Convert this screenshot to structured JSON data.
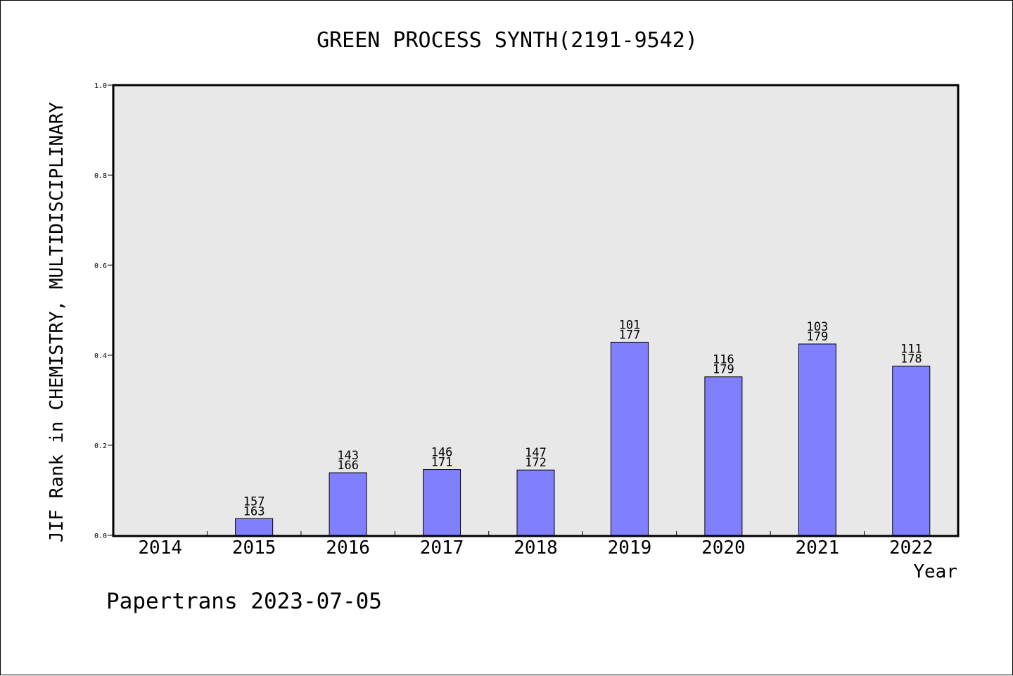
{
  "chart_data": {
    "type": "bar",
    "title": "GREEN PROCESS SYNTH(2191-9542)",
    "xlabel": "Year",
    "ylabel": "JIF Rank in CHEMISTRY, MULTIDISCIPLINARY",
    "ylim": [
      0,
      1
    ],
    "yticks": [
      "0.0",
      "0.2",
      "0.4",
      "0.6",
      "0.8",
      "1.0"
    ],
    "categories": [
      "2014",
      "2015",
      "2016",
      "2017",
      "2018",
      "2019",
      "2020",
      "2021",
      "2022"
    ],
    "values": [
      null,
      0.037,
      0.139,
      0.146,
      0.145,
      0.429,
      0.352,
      0.425,
      0.376
    ],
    "ranks": [
      null,
      "157",
      "143",
      "146",
      "147",
      "101",
      "116",
      "103",
      "111"
    ],
    "totals": [
      null,
      "163",
      "166",
      "171",
      "172",
      "177",
      "179",
      "179",
      "178"
    ],
    "grid": false
  },
  "footer": {
    "credit": "Papertrans 2023-07-05"
  },
  "colors": {
    "bar": "#8080ff",
    "plot_bg": "#e8e8e8",
    "axis": "#000000"
  }
}
